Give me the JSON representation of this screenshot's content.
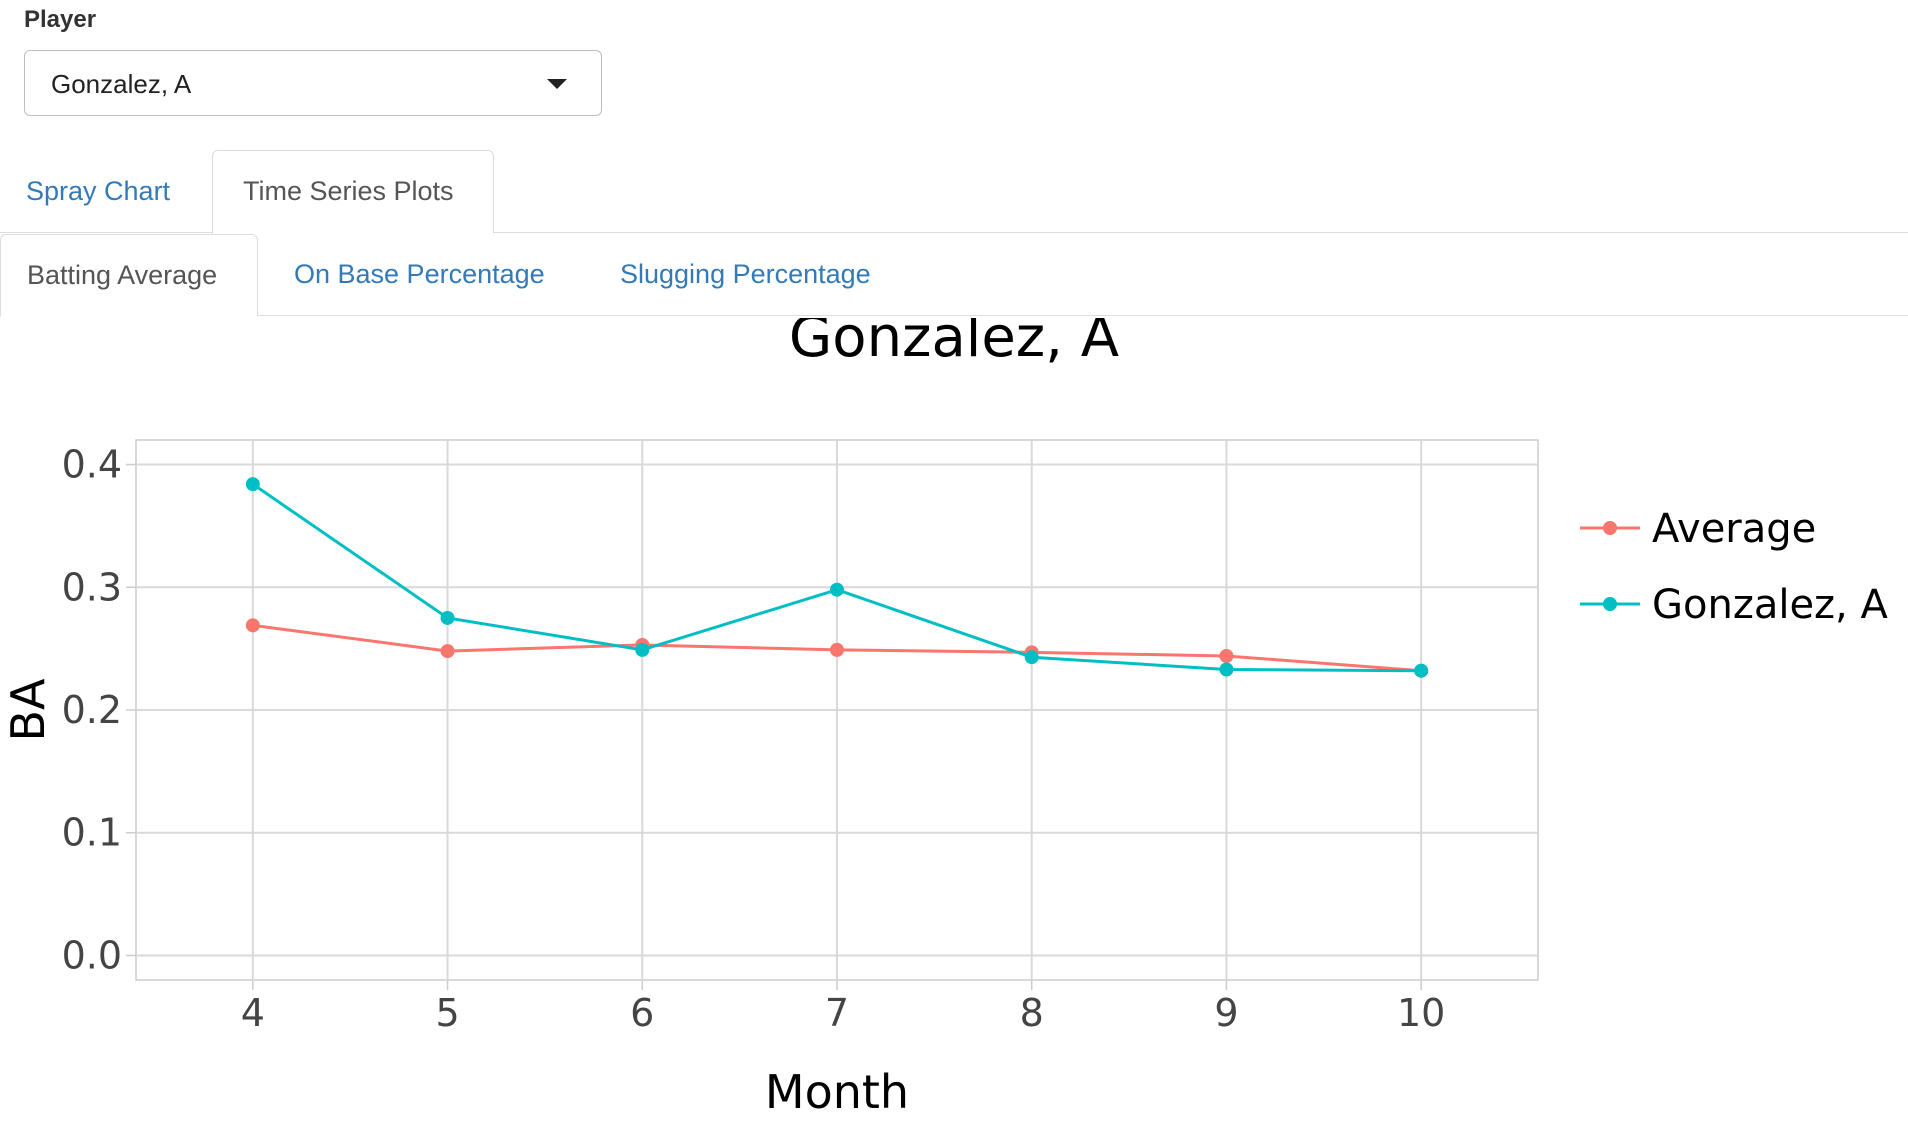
{
  "player": {
    "label": "Player",
    "selected": "Gonzalez, A"
  },
  "tabs": [
    {
      "label": "Spray Chart",
      "active": false
    },
    {
      "label": "Time Series Plots",
      "active": true
    }
  ],
  "subtabs": [
    {
      "label": "Batting Average",
      "active": true
    },
    {
      "label": "On Base Percentage",
      "active": false
    },
    {
      "label": "Slugging Percentage",
      "active": false
    }
  ],
  "chart_data": {
    "type": "line",
    "title": "Gonzalez, A",
    "xlabel": "Month",
    "ylabel": "BA",
    "x": [
      4,
      5,
      6,
      7,
      8,
      9,
      10
    ],
    "x_ticks": [
      "4",
      "5",
      "6",
      "7",
      "8",
      "9",
      "10"
    ],
    "y_ticks": [
      "0.0",
      "0.1",
      "0.2",
      "0.3",
      "0.4"
    ],
    "xlim": [
      3.4,
      10.6
    ],
    "ylim": [
      -0.02,
      0.42
    ],
    "grid": true,
    "legend_position": "right",
    "series": [
      {
        "name": "Average",
        "color": "#f8766d",
        "values": [
          0.269,
          0.248,
          0.253,
          0.249,
          0.247,
          0.244,
          0.232
        ]
      },
      {
        "name": "Gonzalez, A",
        "color": "#00bfc4",
        "values": [
          0.384,
          0.275,
          0.249,
          0.298,
          0.243,
          0.233,
          0.232
        ]
      }
    ]
  }
}
